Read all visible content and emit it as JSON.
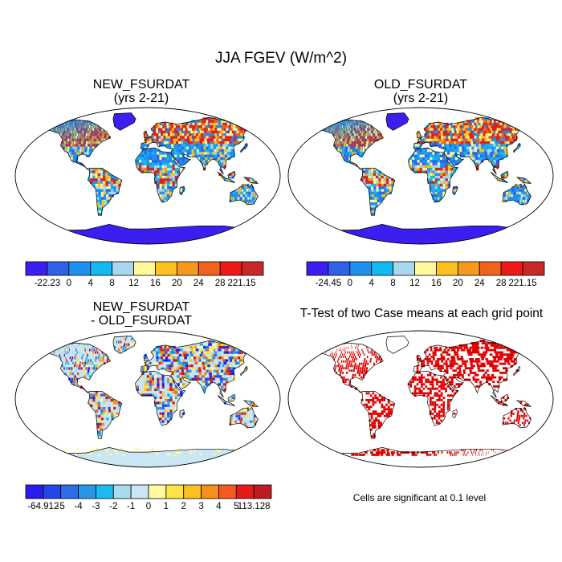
{
  "figure": {
    "title": "JJA FGEV (W/m^2)",
    "note": "Cells are significant at 0.1 level"
  },
  "panels": [
    {
      "id": "new",
      "title_line1": "NEW_FSURDAT",
      "title_line2": "(yrs 2-21)",
      "style": "abs"
    },
    {
      "id": "old",
      "title_line1": "OLD_FSURDAT",
      "title_line2": "(yrs 2-21)",
      "style": "abs"
    },
    {
      "id": "diff",
      "title_line1": "NEW_FSURDAT",
      "title_line2": "- OLD_FSURDAT",
      "style": "diff"
    },
    {
      "id": "ttest",
      "title_line1": "T-Test of two Case means at each grid point",
      "title_line2": "",
      "style": "sig"
    }
  ],
  "colorbars": [
    {
      "id": "new-colorbar",
      "labels": [
        "-22.23",
        "0",
        "4",
        "8",
        "12",
        "16",
        "20",
        "24",
        "28",
        "221.15"
      ],
      "colors": [
        "#3a1ff0",
        "#2f62e6",
        "#1f8ff0",
        "#14b8f2",
        "#a8d8f0",
        "#fff79a",
        "#fbc21f",
        "#f6981b",
        "#f0621d",
        "#f01818",
        "#c82828"
      ]
    },
    {
      "id": "old-colorbar",
      "labels": [
        "-24.45",
        "0",
        "4",
        "8",
        "12",
        "16",
        "20",
        "24",
        "28",
        "221.15"
      ],
      "colors": [
        "#3a1ff0",
        "#2f62e6",
        "#1f8ff0",
        "#14b8f2",
        "#a8d8f0",
        "#fff79a",
        "#fbc21f",
        "#f6981b",
        "#f0621d",
        "#f01818",
        "#c82828"
      ]
    },
    {
      "id": "diff-colorbar",
      "labels": [
        "-64.912",
        "-5",
        "-4",
        "-3",
        "-2",
        "-1",
        "0",
        "1",
        "2",
        "3",
        "4",
        "5",
        "113.128"
      ],
      "colors": [
        "#2a1cf0",
        "#2246e8",
        "#2c6ee6",
        "#2896e8",
        "#1cbaf0",
        "#a8daf0",
        "#c9e6f2",
        "#fff9a0",
        "#fde24a",
        "#fbbf20",
        "#f6901c",
        "#f25a1e",
        "#e81a18",
        "#c01a22"
      ]
    }
  ]
}
